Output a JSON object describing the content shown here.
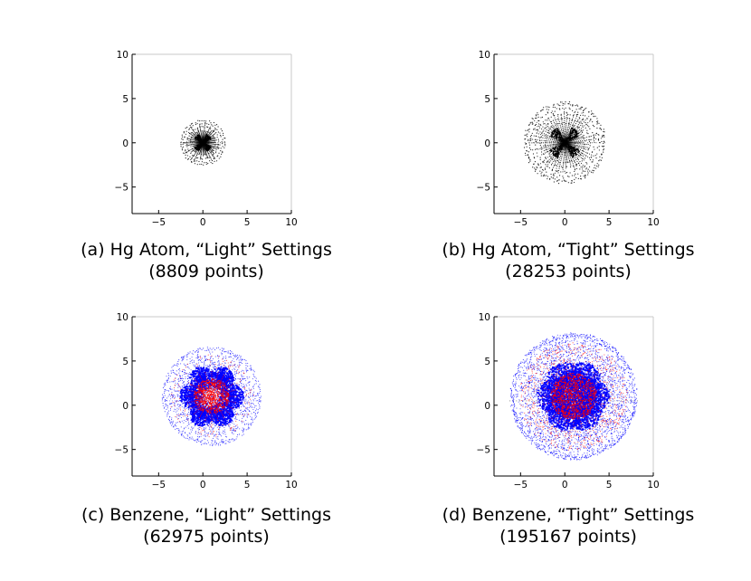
{
  "chart_data": [
    {
      "type": "scatter",
      "caption": "(a) Hg Atom, “Light” Settings",
      "points_label": "(8809 points)",
      "xlim": [
        -8,
        10
      ],
      "ylim": [
        -8,
        10
      ],
      "xticks": [
        -5,
        0,
        5,
        10
      ],
      "yticks": [
        -5,
        0,
        5,
        10
      ],
      "grid": false,
      "structure": "spherical atom grid centered at origin",
      "center": [
        0,
        0
      ],
      "radius": 2.5,
      "series": [
        {
          "color": "#000000"
        }
      ]
    },
    {
      "type": "scatter",
      "caption": "(b) Hg Atom, “Tight” Settings",
      "points_label": "(28253 points)",
      "xlim": [
        -8,
        10
      ],
      "ylim": [
        -8,
        10
      ],
      "xticks": [
        -5,
        0,
        5,
        10
      ],
      "yticks": [
        -5,
        0,
        5,
        10
      ],
      "grid": false,
      "structure": "spherical atom grid centered at origin",
      "center": [
        0,
        0
      ],
      "radius": 4.5,
      "series": [
        {
          "color": "#000000"
        }
      ]
    },
    {
      "type": "scatter",
      "caption": "(c) Benzene, “Light” Settings",
      "points_label": "(62975 points)",
      "xlim": [
        -8,
        10
      ],
      "ylim": [
        -8,
        10
      ],
      "xticks": [
        -5,
        0,
        5,
        10
      ],
      "yticks": [
        -5,
        0,
        5,
        10
      ],
      "grid": false,
      "structure": "six carbon-centred grids (blue) with central hydrogen region (red)",
      "center": [
        1,
        1
      ],
      "radius": 5.6,
      "series": [
        {
          "color": "#0000ff"
        },
        {
          "color": "#ff0000"
        }
      ]
    },
    {
      "type": "scatter",
      "caption": "(d) Benzene, “Tight” Settings",
      "points_label": "(195167 points)",
      "xlim": [
        -8,
        10
      ],
      "ylim": [
        -8,
        10
      ],
      "xticks": [
        -5,
        0,
        5,
        10
      ],
      "yticks": [
        -5,
        0,
        5,
        10
      ],
      "grid": false,
      "structure": "six carbon-centred grids (blue) with central hydrogen region (red)",
      "center": [
        1,
        1
      ],
      "radius": 7.2,
      "series": [
        {
          "color": "#0000ff"
        },
        {
          "color": "#ff0000"
        }
      ]
    }
  ]
}
